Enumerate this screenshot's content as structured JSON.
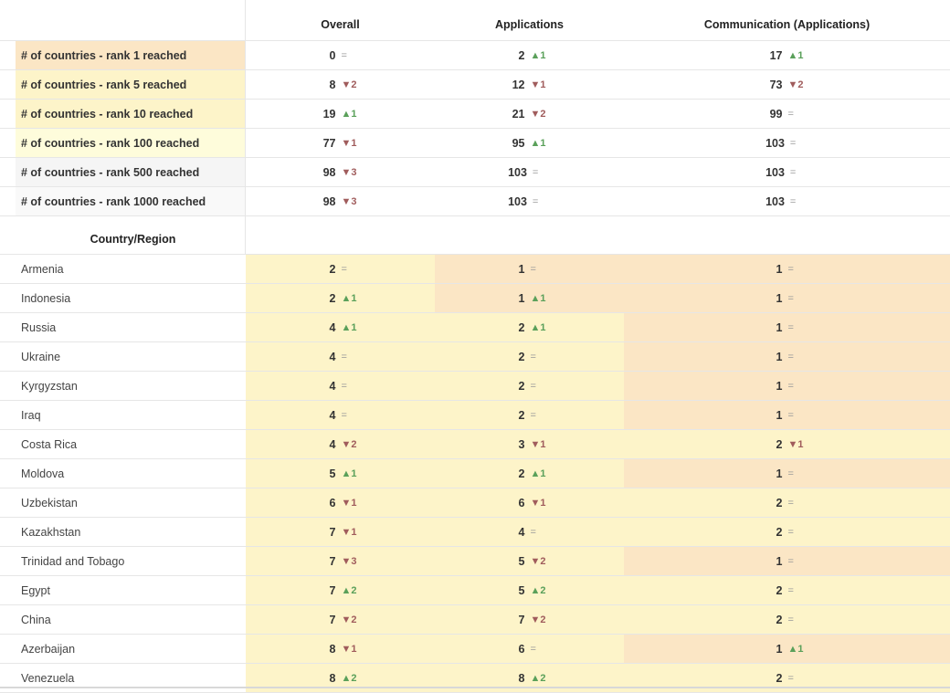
{
  "header": {
    "col_overall": "Overall",
    "col_applications": "Applications",
    "col_communication": "Communication (Applications)"
  },
  "colors": {
    "orange": "#fbe6c5",
    "light_yellow": "#fdf4c9",
    "pale_yellow": "#fefcdb",
    "grey": "#f5f5f5",
    "up": "#5aa05a",
    "down": "#a05c5c"
  },
  "metrics": [
    {
      "label": "# of countries - rank 1 reached",
      "label_color": "#fbe6c5",
      "overall": {
        "v": "0",
        "c": "=",
        "d": "eq"
      },
      "applications": {
        "v": "2",
        "c": "▲1",
        "d": "up"
      },
      "communication": {
        "v": "17",
        "c": "▲1",
        "d": "up"
      }
    },
    {
      "label": "# of countries - rank 5 reached",
      "label_color": "#fdf4c9",
      "overall": {
        "v": "8",
        "c": "▼2",
        "d": "down"
      },
      "applications": {
        "v": "12",
        "c": "▼1",
        "d": "down"
      },
      "communication": {
        "v": "73",
        "c": "▼2",
        "d": "down"
      }
    },
    {
      "label": "# of countries - rank 10 reached",
      "label_color": "#fdf4c9",
      "overall": {
        "v": "19",
        "c": "▲1",
        "d": "up"
      },
      "applications": {
        "v": "21",
        "c": "▼2",
        "d": "down"
      },
      "communication": {
        "v": "99",
        "c": "=",
        "d": "eq"
      }
    },
    {
      "label": "# of countries - rank 100 reached",
      "label_color": "#fefcdb",
      "overall": {
        "v": "77",
        "c": "▼1",
        "d": "down"
      },
      "applications": {
        "v": "95",
        "c": "▲1",
        "d": "up"
      },
      "communication": {
        "v": "103",
        "c": "=",
        "d": "eq"
      }
    },
    {
      "label": "# of countries - rank 500 reached",
      "label_color": "#f5f5f5",
      "overall": {
        "v": "98",
        "c": "▼3",
        "d": "down"
      },
      "applications": {
        "v": "103",
        "c": "=",
        "d": "eq"
      },
      "communication": {
        "v": "103",
        "c": "=",
        "d": "eq"
      }
    },
    {
      "label": "# of countries - rank 1000 reached",
      "label_color": "#f9f9f9",
      "overall": {
        "v": "98",
        "c": "▼3",
        "d": "down"
      },
      "applications": {
        "v": "103",
        "c": "=",
        "d": "eq"
      },
      "communication": {
        "v": "103",
        "c": "=",
        "d": "eq"
      }
    }
  ],
  "section_title": "Country/Region",
  "countries": [
    {
      "name": "Armenia",
      "overall": {
        "v": "2",
        "c": "=",
        "d": "eq",
        "bg": "#fdf4c9"
      },
      "applications": {
        "v": "1",
        "c": "=",
        "d": "eq",
        "bg": "#fbe6c5"
      },
      "communication": {
        "v": "1",
        "c": "=",
        "d": "eq",
        "bg": "#fbe6c5"
      }
    },
    {
      "name": "Indonesia",
      "overall": {
        "v": "2",
        "c": "▲1",
        "d": "up",
        "bg": "#fdf4c9"
      },
      "applications": {
        "v": "1",
        "c": "▲1",
        "d": "up",
        "bg": "#fbe6c5"
      },
      "communication": {
        "v": "1",
        "c": "=",
        "d": "eq",
        "bg": "#fbe6c5"
      }
    },
    {
      "name": "Russia",
      "overall": {
        "v": "4",
        "c": "▲1",
        "d": "up",
        "bg": "#fdf4c9"
      },
      "applications": {
        "v": "2",
        "c": "▲1",
        "d": "up",
        "bg": "#fdf4c9"
      },
      "communication": {
        "v": "1",
        "c": "=",
        "d": "eq",
        "bg": "#fbe6c5"
      }
    },
    {
      "name": "Ukraine",
      "overall": {
        "v": "4",
        "c": "=",
        "d": "eq",
        "bg": "#fdf4c9"
      },
      "applications": {
        "v": "2",
        "c": "=",
        "d": "eq",
        "bg": "#fdf4c9"
      },
      "communication": {
        "v": "1",
        "c": "=",
        "d": "eq",
        "bg": "#fbe6c5"
      }
    },
    {
      "name": "Kyrgyzstan",
      "overall": {
        "v": "4",
        "c": "=",
        "d": "eq",
        "bg": "#fdf4c9"
      },
      "applications": {
        "v": "2",
        "c": "=",
        "d": "eq",
        "bg": "#fdf4c9"
      },
      "communication": {
        "v": "1",
        "c": "=",
        "d": "eq",
        "bg": "#fbe6c5"
      }
    },
    {
      "name": "Iraq",
      "overall": {
        "v": "4",
        "c": "=",
        "d": "eq",
        "bg": "#fdf4c9"
      },
      "applications": {
        "v": "2",
        "c": "=",
        "d": "eq",
        "bg": "#fdf4c9"
      },
      "communication": {
        "v": "1",
        "c": "=",
        "d": "eq",
        "bg": "#fbe6c5"
      }
    },
    {
      "name": "Costa Rica",
      "overall": {
        "v": "4",
        "c": "▼2",
        "d": "down",
        "bg": "#fdf4c9"
      },
      "applications": {
        "v": "3",
        "c": "▼1",
        "d": "down",
        "bg": "#fdf4c9"
      },
      "communication": {
        "v": "2",
        "c": "▼1",
        "d": "down",
        "bg": "#fdf4c9"
      }
    },
    {
      "name": "Moldova",
      "overall": {
        "v": "5",
        "c": "▲1",
        "d": "up",
        "bg": "#fdf4c9"
      },
      "applications": {
        "v": "2",
        "c": "▲1",
        "d": "up",
        "bg": "#fdf4c9"
      },
      "communication": {
        "v": "1",
        "c": "=",
        "d": "eq",
        "bg": "#fbe6c5"
      }
    },
    {
      "name": "Uzbekistan",
      "overall": {
        "v": "6",
        "c": "▼1",
        "d": "down",
        "bg": "#fdf4c9"
      },
      "applications": {
        "v": "6",
        "c": "▼1",
        "d": "down",
        "bg": "#fdf4c9"
      },
      "communication": {
        "v": "2",
        "c": "=",
        "d": "eq",
        "bg": "#fdf4c9"
      }
    },
    {
      "name": "Kazakhstan",
      "overall": {
        "v": "7",
        "c": "▼1",
        "d": "down",
        "bg": "#fdf4c9"
      },
      "applications": {
        "v": "4",
        "c": "=",
        "d": "eq",
        "bg": "#fdf4c9"
      },
      "communication": {
        "v": "2",
        "c": "=",
        "d": "eq",
        "bg": "#fdf4c9"
      }
    },
    {
      "name": "Trinidad and Tobago",
      "overall": {
        "v": "7",
        "c": "▼3",
        "d": "down",
        "bg": "#fdf4c9"
      },
      "applications": {
        "v": "5",
        "c": "▼2",
        "d": "down",
        "bg": "#fdf4c9"
      },
      "communication": {
        "v": "1",
        "c": "=",
        "d": "eq",
        "bg": "#fbe6c5"
      }
    },
    {
      "name": "Egypt",
      "overall": {
        "v": "7",
        "c": "▲2",
        "d": "up",
        "bg": "#fdf4c9"
      },
      "applications": {
        "v": "5",
        "c": "▲2",
        "d": "up",
        "bg": "#fdf4c9"
      },
      "communication": {
        "v": "2",
        "c": "=",
        "d": "eq",
        "bg": "#fdf4c9"
      }
    },
    {
      "name": "China",
      "overall": {
        "v": "7",
        "c": "▼2",
        "d": "down",
        "bg": "#fdf4c9"
      },
      "applications": {
        "v": "7",
        "c": "▼2",
        "d": "down",
        "bg": "#fdf4c9"
      },
      "communication": {
        "v": "2",
        "c": "=",
        "d": "eq",
        "bg": "#fdf4c9"
      }
    },
    {
      "name": "Azerbaijan",
      "overall": {
        "v": "8",
        "c": "▼1",
        "d": "down",
        "bg": "#fdf4c9"
      },
      "applications": {
        "v": "6",
        "c": "=",
        "d": "eq",
        "bg": "#fdf4c9"
      },
      "communication": {
        "v": "1",
        "c": "▲1",
        "d": "up",
        "bg": "#fbe6c5"
      }
    },
    {
      "name": "Venezuela",
      "overall": {
        "v": "8",
        "c": "▲2",
        "d": "up",
        "bg": "#fdf4c9"
      },
      "applications": {
        "v": "8",
        "c": "▲2",
        "d": "up",
        "bg": "#fdf4c9"
      },
      "communication": {
        "v": "2",
        "c": "=",
        "d": "eq",
        "bg": "#fdf4c9"
      }
    }
  ]
}
